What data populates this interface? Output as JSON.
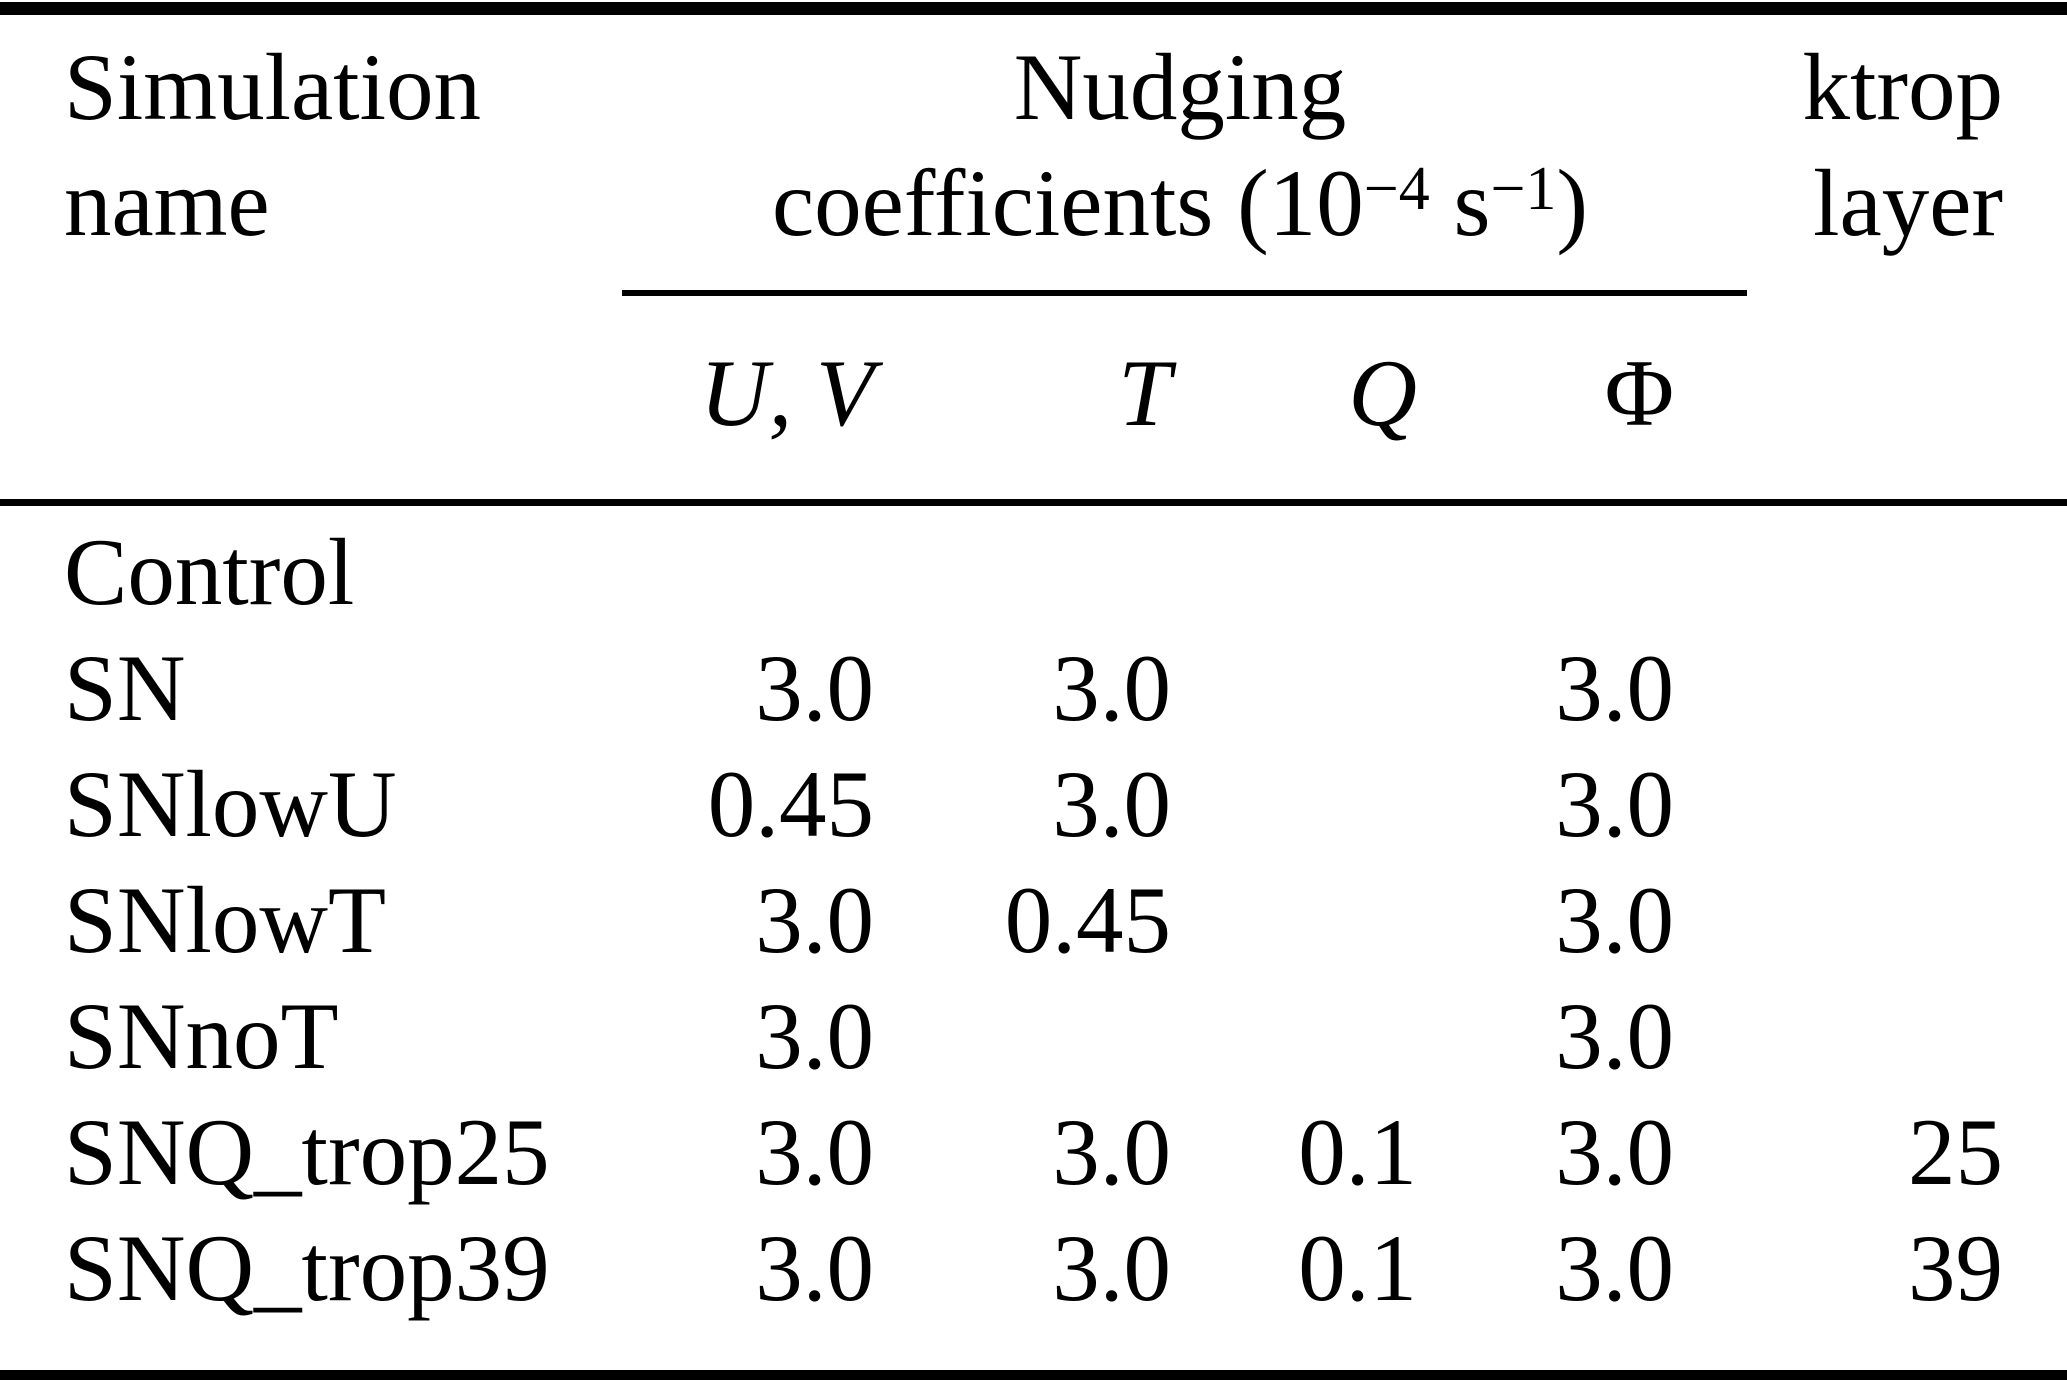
{
  "colors": {
    "ink": "#000000",
    "paper": "#ffffff"
  },
  "table": {
    "header": {
      "sim": {
        "line1": "Simulation",
        "line2": "name"
      },
      "nudging": {
        "line1": "Nudging",
        "coeff_pre": "coefficients (10",
        "coeff_exp1": "−4",
        "coeff_unit": " s",
        "coeff_exp2": "−1",
        "coeff_post": ")"
      },
      "ktrop": {
        "line1": "ktrop",
        "line2": "layer"
      },
      "sub": {
        "uv": "U, V",
        "t": "T",
        "q": "Q",
        "phi": "Φ"
      }
    },
    "rows": [
      {
        "name": "Control",
        "uv": "",
        "t": "",
        "q": "",
        "phi": "",
        "ktrop": ""
      },
      {
        "name": "SN",
        "uv": "3.0",
        "t": "3.0",
        "q": "",
        "phi": "3.0",
        "ktrop": ""
      },
      {
        "name": "SNlowU",
        "uv": "0.45",
        "t": "3.0",
        "q": "",
        "phi": "3.0",
        "ktrop": ""
      },
      {
        "name": "SNlowT",
        "uv": "3.0",
        "t": "0.45",
        "q": "",
        "phi": "3.0",
        "ktrop": ""
      },
      {
        "name": "SNnoT",
        "uv": "3.0",
        "t": "",
        "q": "",
        "phi": "3.0",
        "ktrop": ""
      },
      {
        "name": "SNQ_trop25",
        "uv": "3.0",
        "t": "3.0",
        "q": "0.1",
        "phi": "3.0",
        "ktrop": "25"
      },
      {
        "name": "SNQ_trop39",
        "uv": "3.0",
        "t": "3.0",
        "q": "0.1",
        "phi": "3.0",
        "ktrop": "39"
      }
    ]
  }
}
